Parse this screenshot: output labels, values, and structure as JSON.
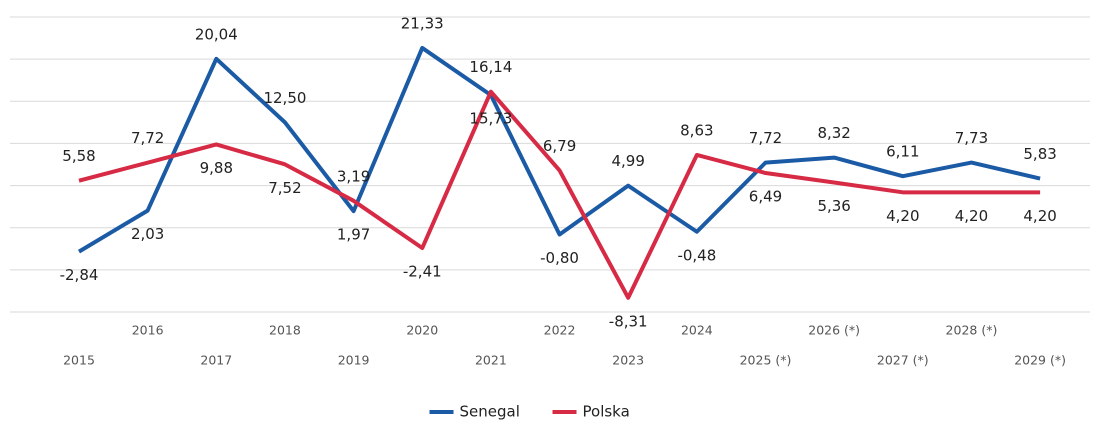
{
  "chart_data": {
    "type": "line",
    "categories": [
      "2015",
      "2016",
      "2017",
      "2018",
      "2019",
      "2020",
      "2021",
      "2022",
      "2023",
      "2024",
      "2025 (*)",
      "2026 (*)",
      "2027 (*)",
      "2028 (*)",
      "2029 (*)"
    ],
    "series": [
      {
        "name": "Senegal",
        "color": "#1b5aa5",
        "values": [
          -2.84,
          2.03,
          20.04,
          12.5,
          1.97,
          21.33,
          15.73,
          -0.8,
          4.99,
          -0.48,
          7.72,
          8.32,
          6.11,
          7.73,
          5.83
        ],
        "value_labels": [
          "-2,84",
          "2,03",
          "20,04",
          "12,50",
          "1,97",
          "21,33",
          "15,73",
          "-0,80",
          "4,99",
          "-0,48",
          "7,72",
          "8,32",
          "6,11",
          "7,73",
          "5,83"
        ]
      },
      {
        "name": "Polska",
        "color": "#d62a45",
        "values": [
          5.58,
          7.72,
          9.88,
          7.52,
          3.19,
          -2.41,
          16.14,
          6.79,
          -8.31,
          8.63,
          6.49,
          5.36,
          4.2,
          4.2,
          4.2
        ],
        "value_labels": [
          "5,58",
          "7,72",
          "9,88",
          "7,52",
          "3,19",
          "-2,41",
          "16,14",
          "6,79",
          "-8,31",
          "8,63",
          "6,49",
          "5,36",
          "4,20",
          "4,20",
          "4,20"
        ]
      }
    ],
    "ylim": [
      -10,
      25
    ],
    "yticks": [
      -10,
      -5,
      0,
      5,
      10,
      15,
      20,
      25
    ],
    "grid": true,
    "legend": "bottom"
  }
}
